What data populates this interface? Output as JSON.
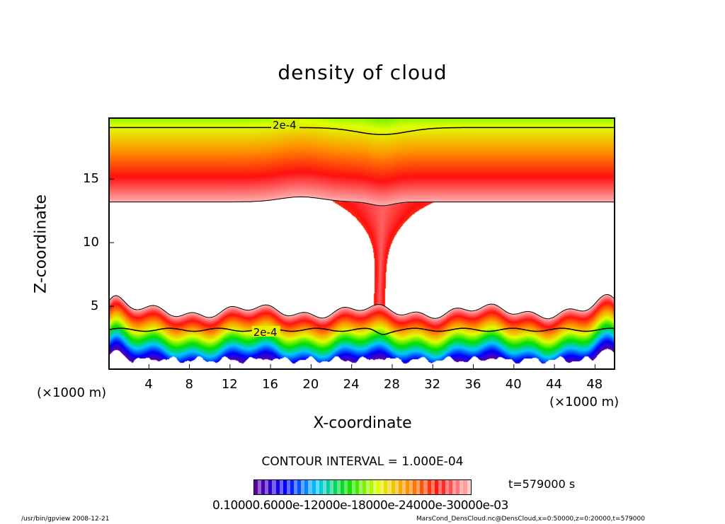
{
  "chart_data": {
    "type": "heatmap",
    "title": "density of cloud",
    "xlabel": "X-coordinate",
    "ylabel": "Z-coordinate",
    "x_unit": "(×1000 m)",
    "z_unit": "(×1000 m)",
    "xlim": [
      0,
      50
    ],
    "ylim": [
      0,
      20
    ],
    "x_ticks": [
      "4",
      "8",
      "12",
      "16",
      "20",
      "24",
      "28",
      "32",
      "36",
      "40",
      "44",
      "48"
    ],
    "y_ticks": [
      "5",
      "10",
      "15"
    ],
    "contour_interval": "CONTOUR INTERVAL = 1.000E-04",
    "contour_labels": [
      "2e-4",
      "2e-4"
    ],
    "colorbar_labels": "0.10000.6000e-12000e-18000e-24000e-30000e-03",
    "colormap": [
      "#5a00a0",
      "#0000ff",
      "#00c8ff",
      "#00e000",
      "#e0ff00",
      "#ff9000",
      "#ff1010",
      "#ffb0b0"
    ],
    "time": "t=579000 s"
  },
  "footer": {
    "left": "/usr/bin/gpview   2008-12-21",
    "right": "MarsCond_DensCloud.nc@DensCloud,x=0:50000,z=0:20000,t=579000"
  }
}
